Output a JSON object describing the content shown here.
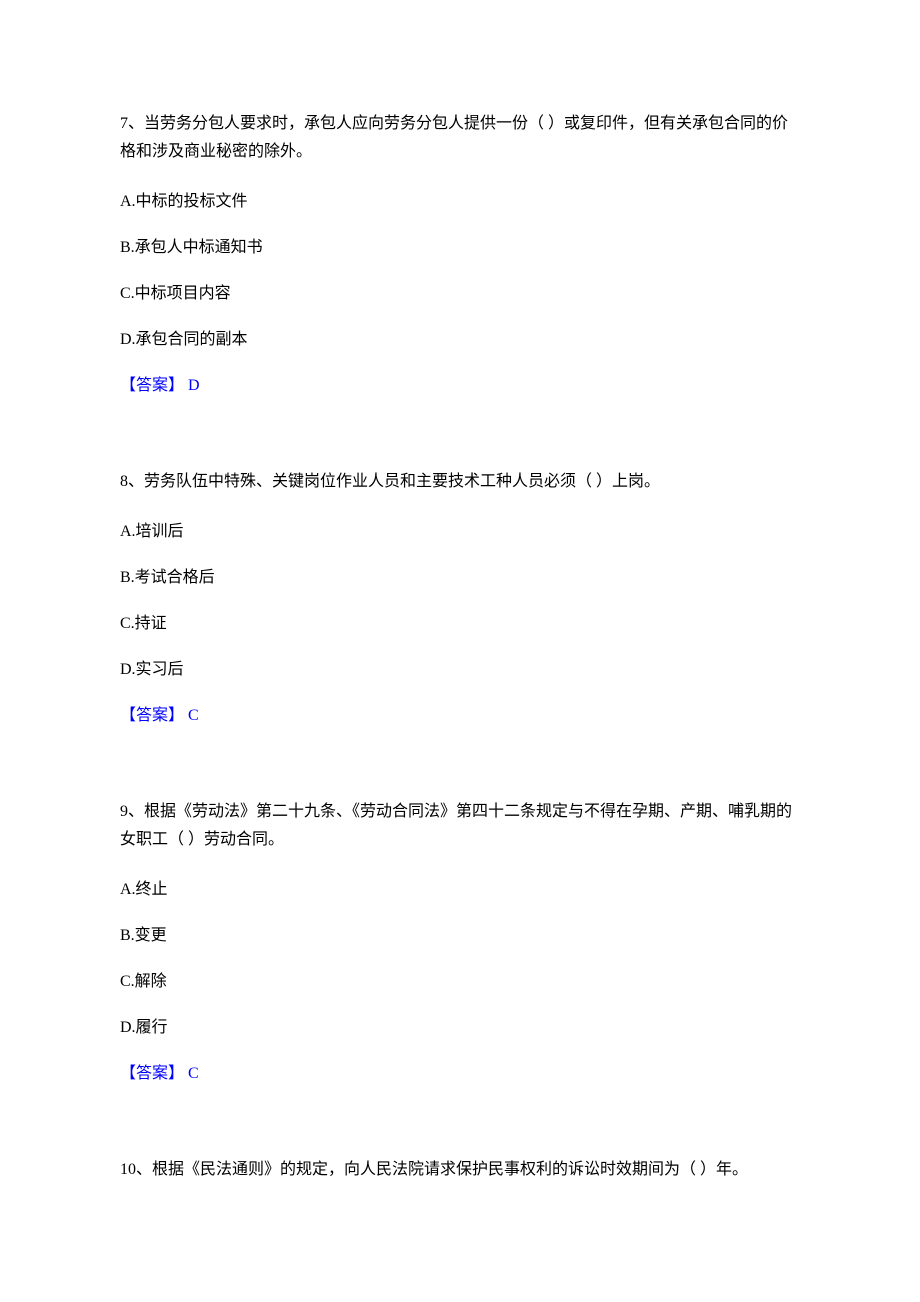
{
  "font": {
    "family": "SimSun",
    "size_pt": 12
  },
  "colors": {
    "text": "#000000",
    "answer": "#0000ff",
    "background": "#ffffff"
  },
  "questions": [
    {
      "number": "7",
      "text": "7、当劳务分包人要求时，承包人应向劳务分包人提供一份（ ）或复印件，但有关承包合同的价格和涉及商业秘密的除外。",
      "options": {
        "A": "A.中标的投标文件",
        "B": "B.承包人中标通知书",
        "C": "C.中标项目内容",
        "D": "D.承包合同的副本"
      },
      "answer": "【答案】 D"
    },
    {
      "number": "8",
      "text": "8、劳务队伍中特殊、关键岗位作业人员和主要技术工种人员必须（ ）上岗。",
      "options": {
        "A": "A.培训后",
        "B": "B.考试合格后",
        "C": "C.持证",
        "D": "D.实习后"
      },
      "answer": "【答案】 C"
    },
    {
      "number": "9",
      "text": "9、根据《劳动法》第二十九条、《劳动合同法》第四十二条规定与不得在孕期、产期、哺乳期的女职工（ ）劳动合同。",
      "options": {
        "A": "A.终止",
        "B": "B.变更",
        "C": "C.解除",
        "D": "D.履行"
      },
      "answer": "【答案】 C"
    },
    {
      "number": "10",
      "text": "10、根据《民法通则》的规定，向人民法院请求保护民事权利的诉讼时效期间为（ ）年。",
      "options": null,
      "answer": null
    }
  ]
}
